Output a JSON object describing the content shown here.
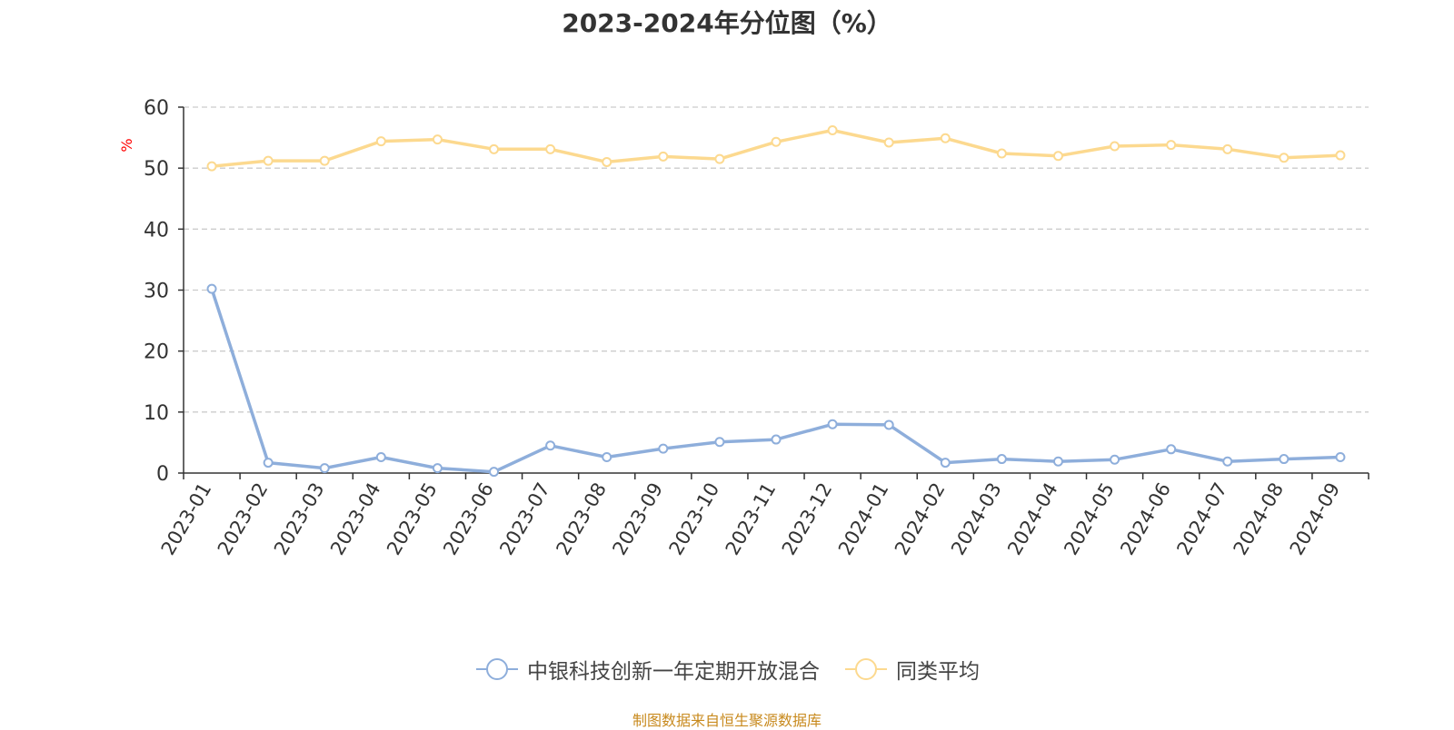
{
  "title": "2023-2024年分位图（%）",
  "source_note": "制图数据来自恒生聚源数据库",
  "colors": {
    "series_fund": "#8eaedb",
    "series_avg": "#fcd98f",
    "unit_label": "#ff0000",
    "source_note": "#c88a1e",
    "axis": "#333333",
    "grid": "#cccccc",
    "tick_text": "#333333"
  },
  "chart_data": {
    "type": "line",
    "title": "2023-2024年分位图（%）",
    "ylabel": "%",
    "xlabel": "",
    "ylim": [
      0,
      60
    ],
    "yticks": [
      0,
      10,
      20,
      30,
      40,
      50,
      60
    ],
    "grid": true,
    "legend_position": "bottom-center",
    "categories": [
      "2023-01",
      "2023-02",
      "2023-03",
      "2023-04",
      "2023-05",
      "2023-06",
      "2023-07",
      "2023-08",
      "2023-09",
      "2023-10",
      "2023-11",
      "2023-12",
      "2024-01",
      "2024-02",
      "2024-03",
      "2024-04",
      "2024-05",
      "2024-06",
      "2024-07",
      "2024-08",
      "2024-09"
    ],
    "series": [
      {
        "name": "中银科技创新一年定期开放混合",
        "values": [
          30.2,
          1.7,
          0.8,
          2.6,
          0.8,
          0.2,
          4.5,
          2.6,
          4.0,
          5.1,
          5.5,
          8.0,
          7.9,
          1.7,
          2.3,
          1.9,
          2.2,
          3.9,
          1.9,
          2.3,
          2.6
        ]
      },
      {
        "name": "同类平均",
        "values": [
          50.3,
          51.2,
          51.2,
          54.4,
          54.7,
          53.1,
          53.1,
          51.0,
          51.9,
          51.5,
          54.3,
          56.2,
          54.2,
          54.9,
          52.4,
          52.0,
          53.6,
          53.8,
          53.1,
          51.7,
          52.1
        ]
      }
    ]
  }
}
